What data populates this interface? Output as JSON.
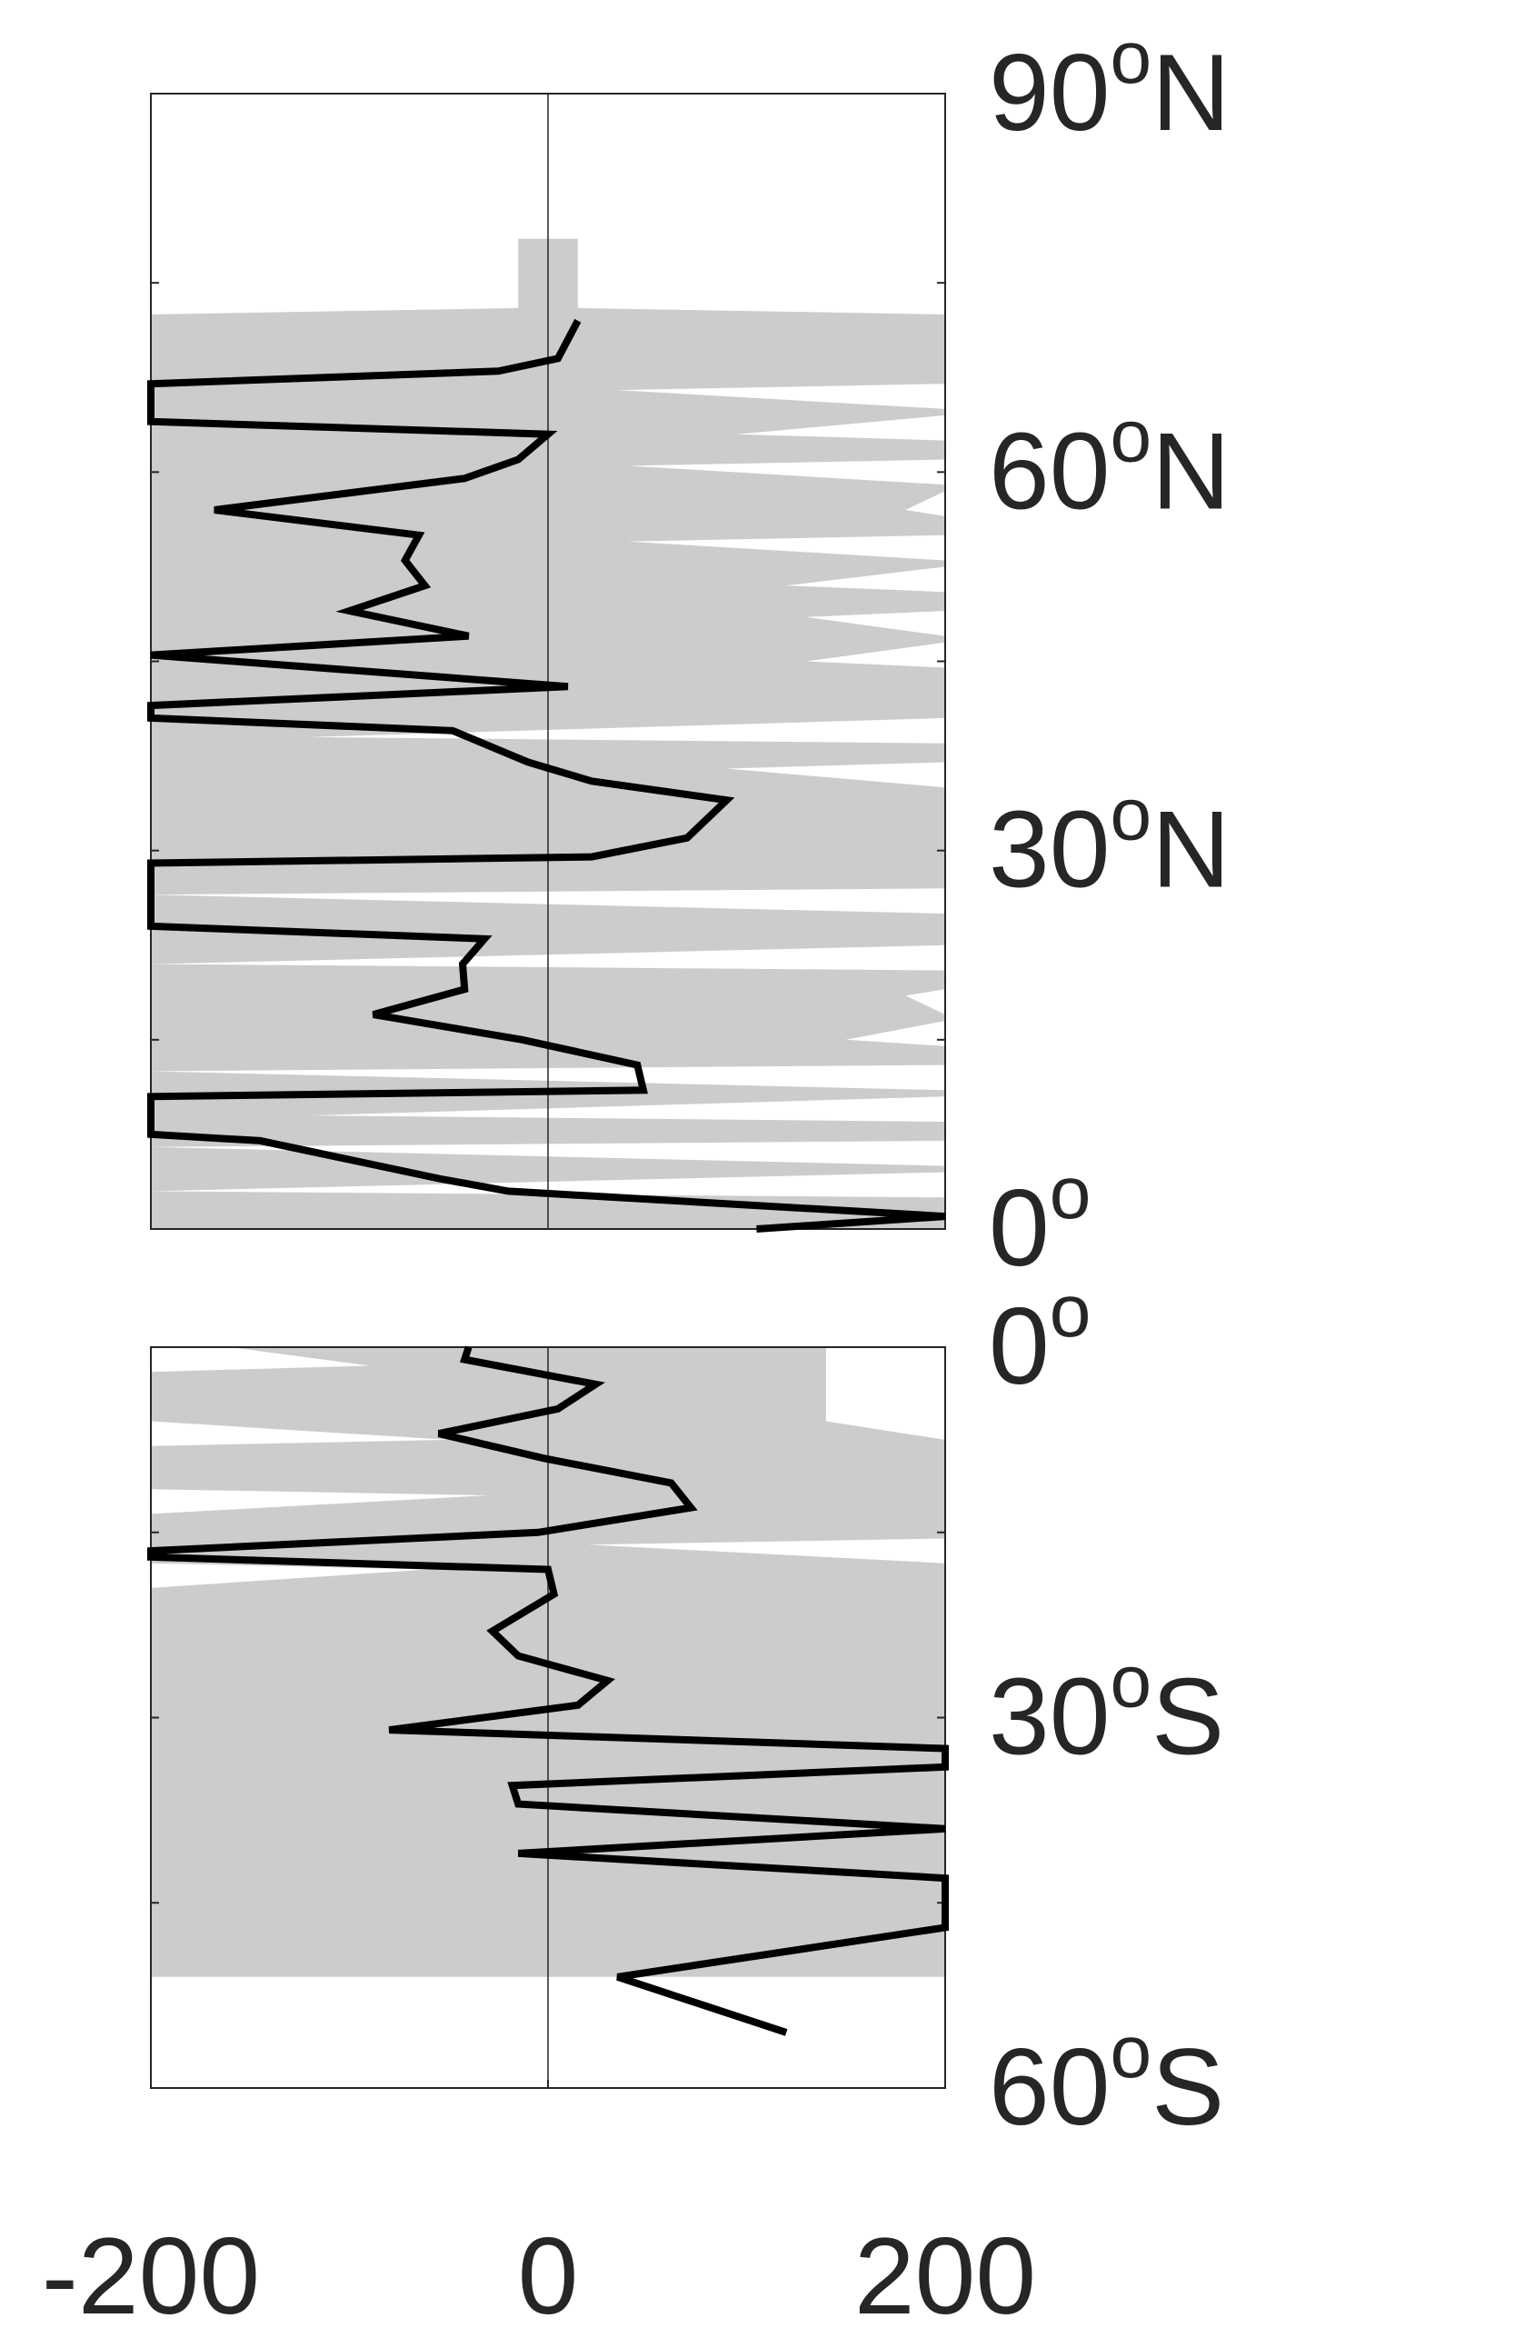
{
  "chart_data": [
    {
      "type": "line",
      "orientation": "vertical",
      "panel": "north",
      "title": "",
      "xlabel": "",
      "ylabel": "",
      "xlim": [
        -200,
        200
      ],
      "ylim": [
        0,
        90
      ],
      "y_tick_labels": [
        {
          "value": 90,
          "text": "90",
          "hemi": "N"
        },
        {
          "value": 60,
          "text": "60",
          "hemi": "N"
        },
        {
          "value": 30,
          "text": "30",
          "hemi": "N"
        },
        {
          "value": 0,
          "text": "0",
          "hemi": ""
        }
      ],
      "y_minor_ticks": [
        15,
        30,
        45,
        60,
        75
      ],
      "band": {
        "color": "#cccccc",
        "lat": [
          0,
          2.5,
          3,
          4.5,
          5,
          6.5,
          7,
          8.5,
          9,
          10.5,
          11,
          12.5,
          13,
          14.5,
          15,
          16.5,
          17,
          18.5,
          19,
          20.5,
          21,
          22.5,
          23,
          24.5,
          25,
          26.5,
          27,
          28.5,
          29,
          30.5,
          31,
          32.5,
          33,
          34.5,
          35,
          36.5,
          37,
          38.5,
          39,
          40.5,
          41,
          42.5,
          43,
          44.5,
          45,
          46.5,
          47,
          48.5,
          49,
          50.5,
          51,
          52.5,
          53,
          54.5,
          55,
          56.5,
          57,
          58.5,
          59,
          60.5,
          61,
          62.5,
          63,
          64.5,
          65,
          66.5,
          67,
          68.5,
          69,
          70.5,
          71,
          72.5,
          73,
          74.5,
          75,
          76.5,
          77,
          78.5
        ],
        "lower": [
          -200,
          -200,
          -200,
          -200,
          -200,
          -200,
          -200,
          -200,
          -200,
          -200,
          -200,
          -200,
          -200,
          -200,
          -200,
          -200,
          -200,
          -200,
          -200,
          -200,
          -200,
          -200,
          -200,
          -200,
          -200,
          -200,
          -200,
          -200,
          -200,
          -200,
          -200,
          -200,
          -200,
          -200,
          -200,
          -200,
          -200,
          -200,
          -200,
          -200,
          -200,
          -200,
          -200,
          -200,
          -200,
          -200,
          -200,
          -200,
          -200,
          -200,
          -200,
          -200,
          -200,
          -200,
          -200,
          -200,
          -200,
          -200,
          -200,
          -200,
          -200,
          -200,
          -200,
          -200,
          -200,
          -200,
          -200,
          -200,
          -200,
          -200,
          -200,
          -200,
          -15,
          -15,
          -15,
          -15,
          -15,
          -15
        ],
        "upper": [
          200,
          200,
          -200,
          200,
          200,
          -200,
          200,
          200,
          -120,
          200,
          200,
          -200,
          200,
          200,
          150,
          200,
          200,
          180,
          200,
          200,
          -200,
          200,
          200,
          200,
          200,
          -200,
          200,
          200,
          200,
          200,
          200,
          200,
          200,
          200,
          200,
          90,
          200,
          200,
          -120,
          200,
          200,
          200,
          200,
          200,
          130,
          200,
          200,
          130,
          200,
          200,
          120,
          200,
          200,
          40,
          200,
          200,
          180,
          200,
          200,
          40,
          200,
          200,
          95,
          200,
          200,
          35,
          200,
          200,
          200,
          200,
          200,
          200,
          15,
          15,
          15,
          15,
          15,
          15
        ]
      },
      "series": [
        {
          "color": "#000000",
          "points": [
            [
              105,
              0
            ],
            [
              200,
              1
            ],
            [
              -20,
              3
            ],
            [
              -55,
              4
            ],
            [
              -145,
              7
            ],
            [
              -200,
              7.5
            ],
            [
              -200,
              10.5
            ],
            [
              48,
              11
            ],
            [
              45,
              13
            ],
            [
              -13,
              15
            ],
            [
              -88,
              17
            ],
            [
              -42,
              19
            ],
            [
              -43,
              21
            ],
            [
              -32,
              23
            ],
            [
              -200,
              24
            ],
            [
              -200,
              29
            ],
            [
              22,
              29.5
            ],
            [
              70,
              31
            ],
            [
              90,
              34
            ],
            [
              22,
              35.5
            ],
            [
              -10,
              37
            ],
            [
              -48,
              39.5
            ],
            [
              -200,
              40.5
            ],
            [
              -200,
              41.5
            ],
            [
              10,
              43
            ],
            [
              -200,
              45.5
            ],
            [
              -40,
              47
            ],
            [
              -100,
              49
            ],
            [
              -62,
              51
            ],
            [
              -72,
              53
            ],
            [
              -65,
              55
            ],
            [
              -168,
              57
            ],
            [
              -42,
              59.5
            ],
            [
              -15,
              61
            ],
            [
              0,
              63
            ],
            [
              -200,
              64
            ],
            [
              -200,
              67
            ],
            [
              -25,
              68
            ],
            [
              5,
              69
            ],
            [
              15,
              72
            ]
          ]
        }
      ]
    },
    {
      "type": "line",
      "orientation": "vertical",
      "panel": "south",
      "title": "",
      "xlabel": "",
      "ylabel": "",
      "xlim": [
        -200,
        200
      ],
      "ylim": [
        -60,
        0
      ],
      "x_tick_labels": [
        "-200",
        "0",
        "200"
      ],
      "x_ticks": [
        -200,
        0,
        200
      ],
      "y_tick_labels": [
        {
          "value": 0,
          "text": "0",
          "hemi": ""
        },
        {
          "value": -30,
          "text": "30",
          "hemi": "S"
        },
        {
          "value": -60,
          "text": "60",
          "hemi": "S"
        }
      ],
      "y_minor_ticks": [
        -15,
        -30,
        -45
      ],
      "band": {
        "color": "#cccccc",
        "lat": [
          0,
          -1.5,
          -2,
          -3.5,
          -4,
          -5.5,
          -6,
          -7.5,
          -8,
          -9.5,
          -10,
          -11.5,
          -12,
          -13.5,
          -14,
          -15.5,
          -16,
          -17.5,
          -18,
          -19.5,
          -20,
          -21.5,
          -22,
          -23.5,
          -24,
          -25.5,
          -26,
          -27.5,
          -28,
          -29.5,
          -30,
          -31.5,
          -32,
          -33.5,
          -34,
          -35.5,
          -36,
          -37.5,
          -38,
          -39.5,
          -40,
          -41.5,
          -42,
          -43.5,
          -44,
          -45.5,
          -46,
          -47.5,
          -48,
          -49.5,
          -50,
          -51
        ],
        "lower": [
          -160,
          -90,
          -200,
          -200,
          -200,
          -200,
          -200,
          -50,
          -200,
          -200,
          -200,
          -200,
          -30,
          -200,
          -200,
          -200,
          -200,
          -200,
          -60,
          -200,
          -200,
          -200,
          -200,
          -200,
          -200,
          -200,
          -200,
          -200,
          -200,
          -200,
          -200,
          -200,
          -200,
          -200,
          -200,
          -200,
          -200,
          -200,
          -200,
          -200,
          -200,
          -200,
          -200,
          -200,
          -200,
          -200,
          -200,
          -200,
          -200,
          -200,
          -200,
          -200
        ],
        "upper": [
          140,
          140,
          140,
          140,
          140,
          140,
          140,
          200,
          200,
          200,
          200,
          200,
          200,
          200,
          200,
          200,
          20,
          200,
          200,
          200,
          200,
          200,
          200,
          200,
          200,
          200,
          200,
          200,
          200,
          200,
          200,
          200,
          200,
          200,
          200,
          200,
          200,
          200,
          200,
          200,
          200,
          200,
          200,
          200,
          200,
          200,
          200,
          200,
          200,
          200,
          200,
          200
        ]
      },
      "series": [
        {
          "color": "#000000",
          "points": [
            [
              -40,
              0
            ],
            [
              -42,
              -1
            ],
            [
              24,
              -3
            ],
            [
              5,
              -5
            ],
            [
              -55,
              -7
            ],
            [
              -2,
              -9
            ],
            [
              62,
              -11
            ],
            [
              72,
              -13
            ],
            [
              -5,
              -15
            ],
            [
              -200,
              -16.5
            ],
            [
              -200,
              -17
            ],
            [
              0,
              -18
            ],
            [
              3,
              -20
            ],
            [
              -28,
              -23
            ],
            [
              -15,
              -25
            ],
            [
              30,
              -27
            ],
            [
              15,
              -29
            ],
            [
              -80,
              -31
            ],
            [
              200,
              -32.5
            ],
            [
              200,
              -34
            ],
            [
              -18,
              -35.5
            ],
            [
              -15,
              -37
            ],
            [
              200,
              -39
            ],
            [
              -15,
              -41
            ],
            [
              200,
              -43
            ],
            [
              200,
              -47
            ],
            [
              35,
              -51
            ],
            [
              120,
              -55.5
            ]
          ]
        }
      ]
    }
  ]
}
